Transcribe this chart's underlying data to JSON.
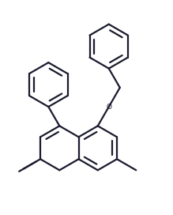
{
  "background_color": "#ffffff",
  "line_color": "#1a1a2e",
  "line_width": 1.6,
  "fig_width": 2.19,
  "fig_height": 2.72,
  "dpi": 100,
  "BL": 0.18,
  "xlim": [
    -0.55,
    0.85
  ],
  "ylim": [
    -0.72,
    0.82
  ]
}
